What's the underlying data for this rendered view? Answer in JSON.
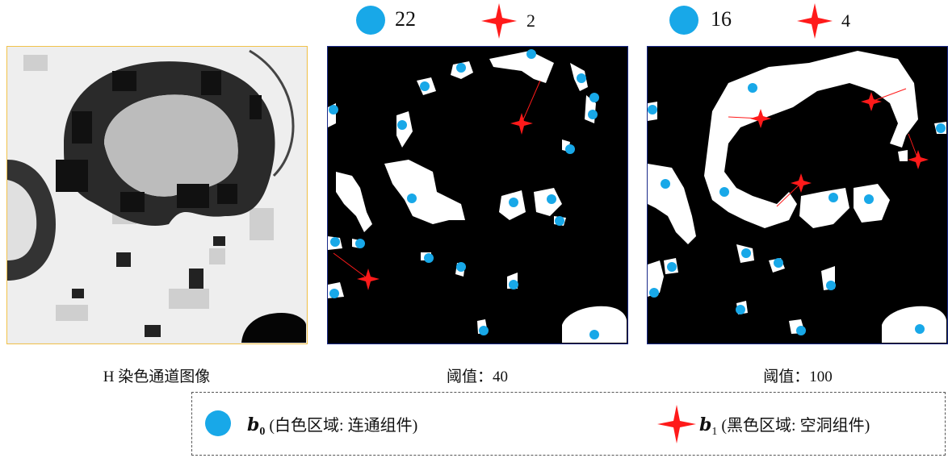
{
  "panels": [
    {
      "caption": "H 染色通道图像"
    },
    {
      "caption": "阈值：40",
      "b0_count": "22",
      "b1_count": "2"
    },
    {
      "caption": "阈值：100",
      "b0_count": "16",
      "b1_count": "4"
    }
  ],
  "legend": {
    "b0_symbol": "b",
    "b0_sub": "0",
    "b0_desc": " (白色区域: 连通组件)",
    "b1_symbol": "b",
    "b1_sub": "1",
    "b1_desc": " (黑色区域: 空洞组件)"
  },
  "colors": {
    "b0": "#18a8e8",
    "b1": "#ff1a1a",
    "panel_border_gray": "#f2c24a",
    "panel_border_bin": "#1a2a8a"
  }
}
